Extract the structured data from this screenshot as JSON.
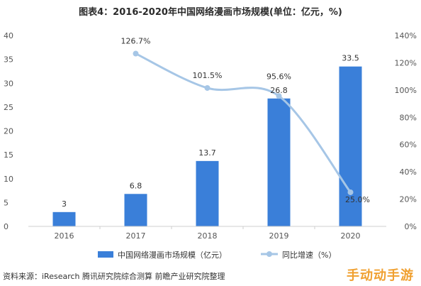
{
  "header": {
    "title": "图表4：2016-2020年中国网络漫画市场规模(单位：亿元，%)"
  },
  "footer": {
    "source": "资料来源：iResearch 腾讯研究院综合测算 前瞻产业研究院整理",
    "brand": "手动动手游"
  },
  "colors": {
    "bar": "#3a7fd9",
    "line": "#a6c6e6",
    "axis_text": "#555555",
    "label_text": "#333333"
  },
  "chart_data": {
    "type": "bar",
    "categories": [
      "2016",
      "2017",
      "2018",
      "2019",
      "2020"
    ],
    "series": [
      {
        "name": "中国网络漫画市场规模（亿元）",
        "type": "bar",
        "axis": "left",
        "values": [
          3,
          6.8,
          13.7,
          26.8,
          33.5
        ],
        "labels": [
          "3",
          "6.8",
          "13.7",
          "26.8",
          "33.5"
        ]
      },
      {
        "name": "同比增速（%）",
        "type": "line",
        "axis": "right",
        "values": [
          null,
          126.7,
          101.5,
          95.6,
          25.0
        ],
        "labels": [
          "",
          "126.7%",
          "101.5%",
          "95.6%",
          "25.0%"
        ]
      }
    ],
    "y_left": {
      "ylim": [
        0,
        40
      ],
      "ticks": [
        0,
        5,
        10,
        15,
        20,
        25,
        30,
        35,
        40
      ]
    },
    "y_right": {
      "ylim": [
        0,
        140
      ],
      "ticks": [
        "0%",
        "20%",
        "40%",
        "60%",
        "80%",
        "100%",
        "120%",
        "140%"
      ]
    },
    "legend_position": "bottom",
    "grid": false
  }
}
